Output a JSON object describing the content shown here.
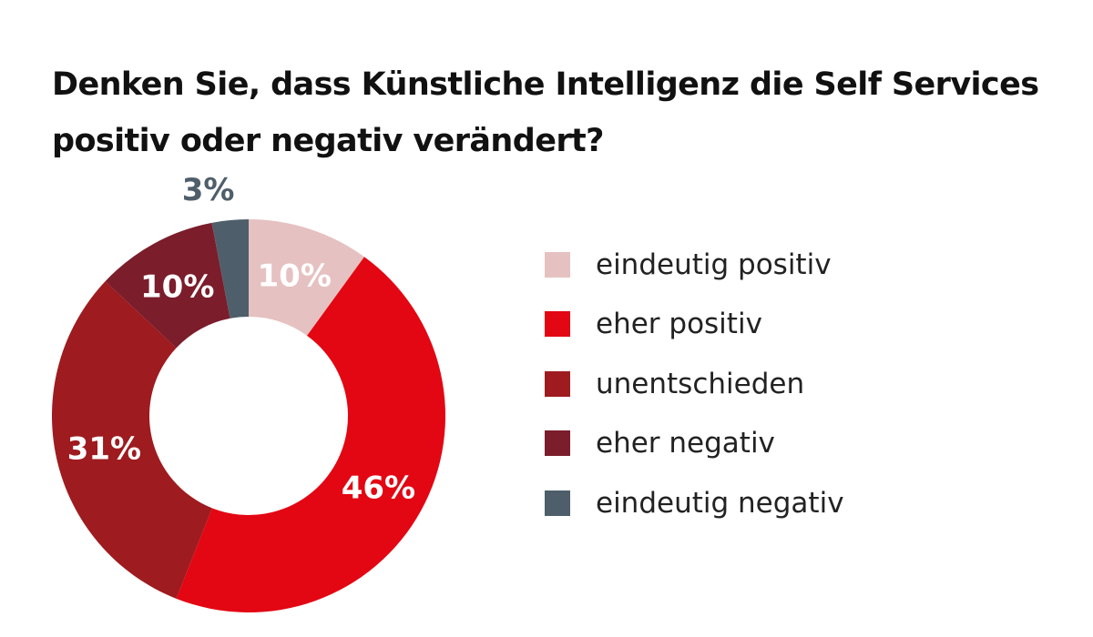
{
  "chart_data": {
    "type": "pie",
    "variant": "donut",
    "title_lines": [
      "Denken Sie, dass Künstliche Intelligenz die Self Services",
      "positiv oder negativ verändert?"
    ],
    "unit": "%",
    "slices": [
      {
        "name": "eindeutig positiv",
        "value": 10,
        "label": "10%",
        "color": "#E6C1C1",
        "label_color": "#ffffff"
      },
      {
        "name": "eher positiv",
        "value": 46,
        "label": "46%",
        "color": "#E30613",
        "label_color": "#ffffff"
      },
      {
        "name": "unentschieden",
        "value": 31,
        "label": "31%",
        "color": "#9E1B1F",
        "label_color": "#ffffff"
      },
      {
        "name": "eher negativ",
        "value": 10,
        "label": "10%",
        "color": "#7B1D2B",
        "label_color": "#ffffff"
      },
      {
        "name": "eindeutig negativ",
        "value": 3,
        "label": "3%",
        "color": "#4E5E6A",
        "label_color": "#4E5E6A"
      }
    ],
    "start_direction": "12 o'clock",
    "order": "clockwise",
    "legend_position": "right"
  }
}
